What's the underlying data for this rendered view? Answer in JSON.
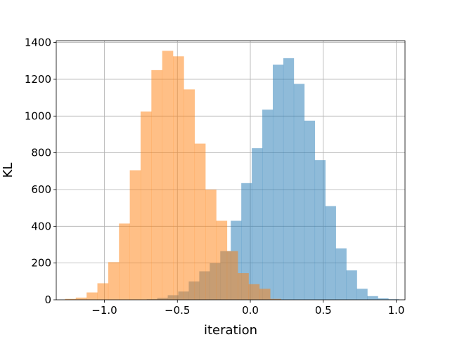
{
  "chart_data": {
    "type": "bar",
    "xlabel": "iteration",
    "ylabel": "KL",
    "xlim": [
      -1.33,
      1.06
    ],
    "ylim": [
      0,
      1410
    ],
    "xticks": [
      -1.0,
      -0.5,
      0.0,
      0.5,
      1.0
    ],
    "xtick_labels": [
      "−1.0",
      "−0.5",
      "0.0",
      "0.5",
      "1.0"
    ],
    "yticks": [
      0,
      200,
      400,
      600,
      800,
      1000,
      1200,
      1400
    ],
    "ytick_labels": [
      "0",
      "200",
      "400",
      "600",
      "800",
      "1000",
      "1200",
      "1400"
    ],
    "grid": true,
    "series": [
      {
        "color": "#1f77b4",
        "opacity": 0.5,
        "bin_edges": [
          -0.71,
          -0.638,
          -0.566,
          -0.494,
          -0.422,
          -0.35,
          -0.278,
          -0.206,
          -0.134,
          -0.062,
          0.01,
          0.082,
          0.154,
          0.226,
          0.298,
          0.37,
          0.442,
          0.514,
          0.586,
          0.658,
          0.73,
          0.802,
          0.874,
          0.946,
          1.018
        ],
        "counts": [
          3,
          10,
          25,
          45,
          100,
          155,
          200,
          265,
          430,
          635,
          825,
          1035,
          1280,
          1315,
          1175,
          975,
          760,
          510,
          280,
          160,
          60,
          20,
          8,
          3
        ]
      },
      {
        "color": "#ff7f0e",
        "opacity": 0.5,
        "bin_edges": [
          -1.27,
          -1.196,
          -1.122,
          -1.048,
          -0.974,
          -0.9,
          -0.826,
          -0.752,
          -0.678,
          -0.604,
          -0.53,
          -0.456,
          -0.382,
          -0.308,
          -0.234,
          -0.16,
          -0.086,
          -0.012,
          0.062,
          0.136,
          0.21
        ],
        "counts": [
          5,
          12,
          40,
          90,
          205,
          415,
          705,
          1025,
          1250,
          1355,
          1325,
          1145,
          850,
          600,
          430,
          265,
          145,
          85,
          60,
          5
        ]
      }
    ]
  }
}
